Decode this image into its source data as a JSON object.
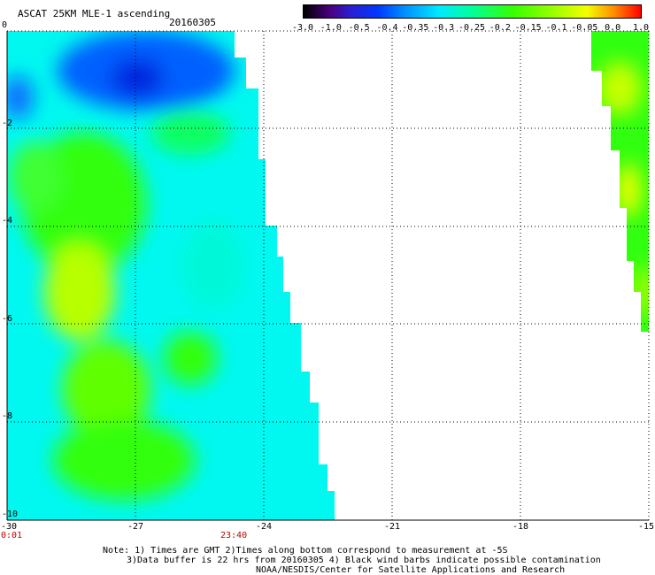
{
  "header": {
    "title": "ASCAT 25KM MLE-1 ascending",
    "date": "20160305"
  },
  "colorbar": {
    "labels": [
      "-3.0",
      "-1.0",
      "-0.5",
      "-0.4",
      "-0.35",
      "-0.3",
      "-0.25",
      "-0.2",
      "-0.15",
      "-0.1",
      "-0.05",
      "0.0",
      "1.0"
    ]
  },
  "axes": {
    "y_ticks": [
      "0",
      "-2",
      "-4",
      "-6",
      "-8",
      "-10"
    ],
    "x_ticks": [
      "-30",
      "-27",
      "-24",
      "-21",
      "-18",
      "-15"
    ],
    "time_start": "0:01",
    "time_end": "23:40"
  },
  "map": {
    "lon_range": [
      -30,
      -15
    ],
    "lat_range": [
      -10,
      0
    ],
    "colors": {
      "blue": "#0050ff",
      "deep_blue": "#0028e0",
      "cyan": "#00f8f0",
      "green": "#30ff10",
      "yellow_green": "#b8ff00",
      "yellow": "#f0ff00"
    }
  },
  "notes": {
    "line1": "Note: 1) Times are GMT 2)Times along bottom correspond to measurement at -5S",
    "line2": "3)Data buffer is 22 hrs from 20160305 4) Black wind barbs indicate possible contamination",
    "line3": "NOAA/NESDIS/Center for Satellite Applications and Research"
  }
}
